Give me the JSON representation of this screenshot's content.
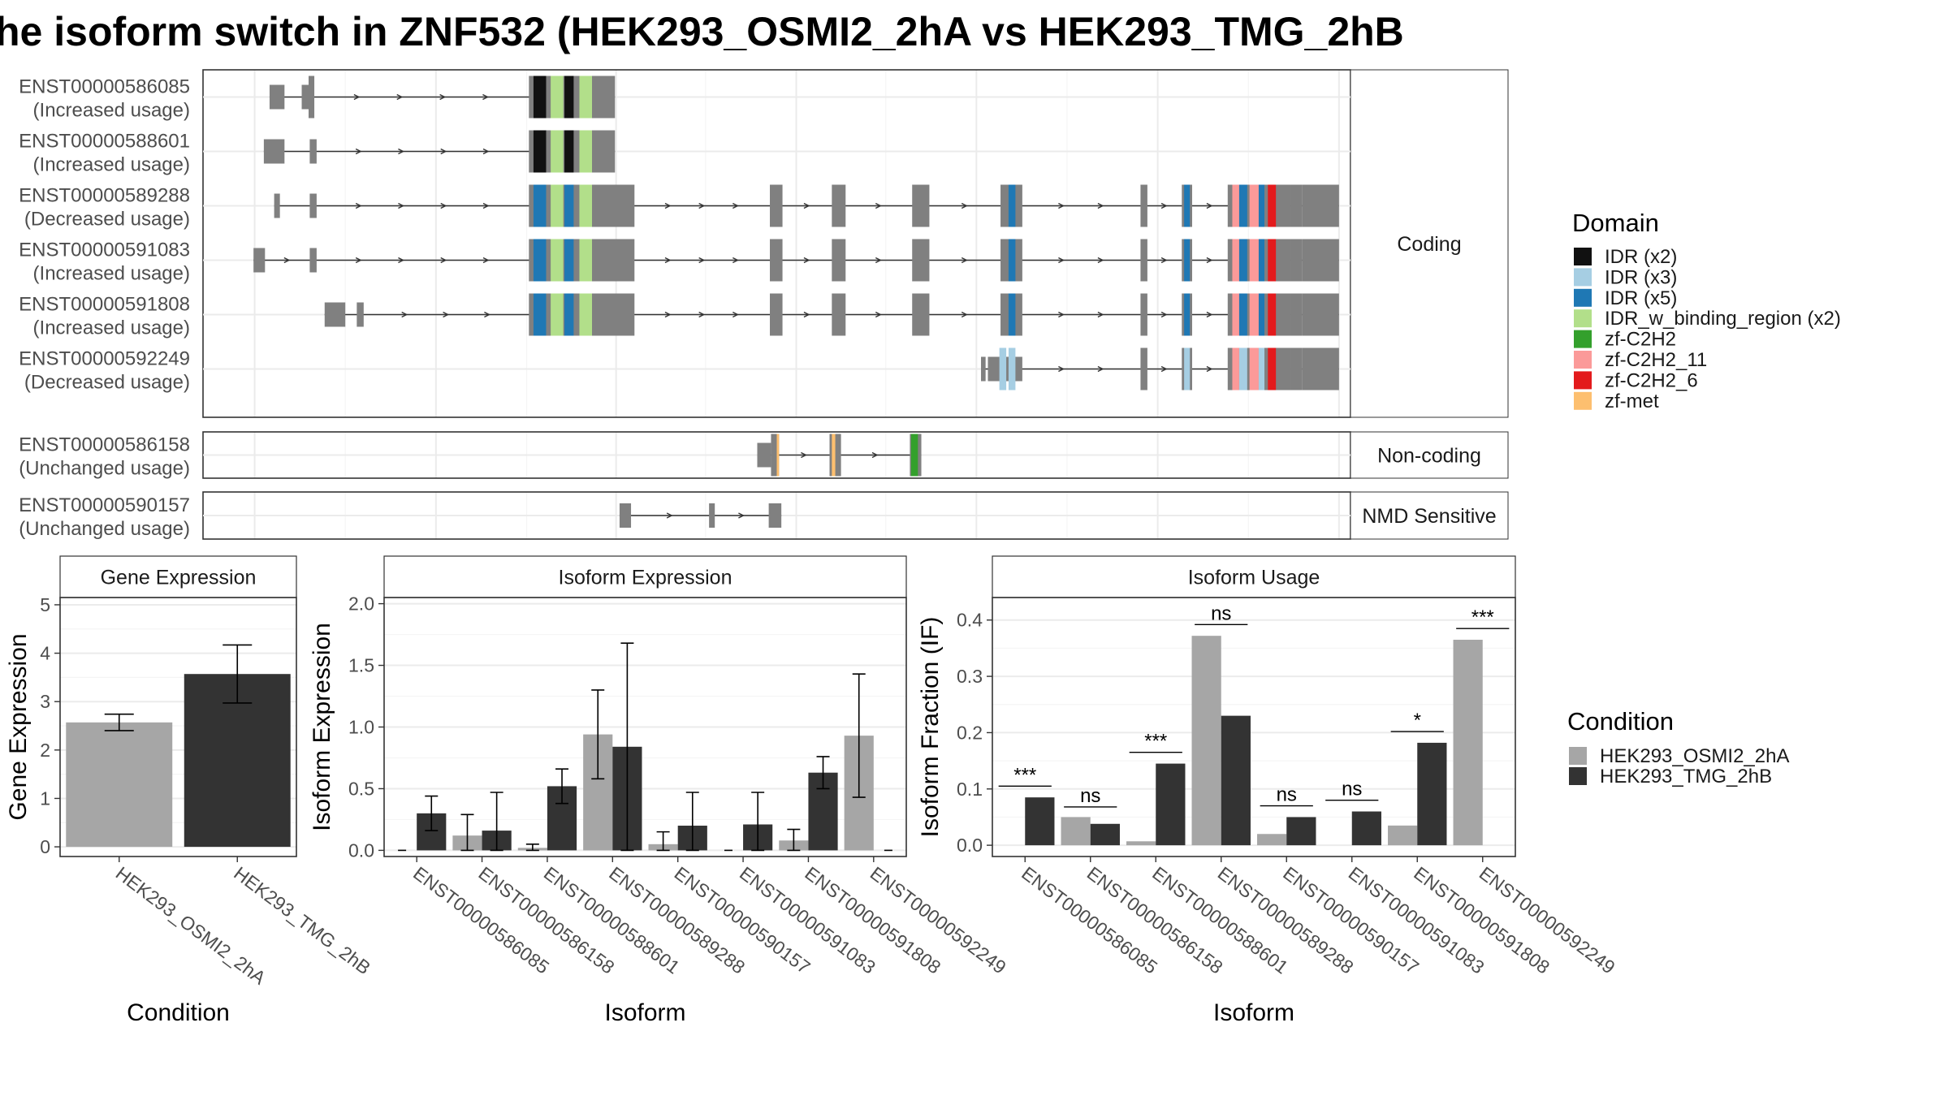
{
  "title": "he isoform switch in ZNF532 (HEK293_OSMI2_2hA vs HEK293_TMG_2hB",
  "colors": {
    "exon": "#808080",
    "line": "#333333",
    "cond_a": "#a6a6a6",
    "cond_b": "#333333",
    "grid": "#ebebeb",
    "strip_bg": "#ffffff",
    "panel_border": "#333333"
  },
  "structure": {
    "groups": [
      {
        "label": "Coding",
        "transcripts": [
          {
            "id": "ENST00000586085",
            "usage": "(Increased usage)",
            "exons": [
              [
                0.058,
                0.071
              ],
              [
                0.086,
                0.092
              ],
              [
                0.092,
                0.097
              ],
              [
                0.284,
                0.359
              ]
            ],
            "domains": [
              [
                0.288,
                0.299,
                "IDR (x2)"
              ],
              [
                0.303,
                0.314,
                "IDR_w_binding_region (x2)"
              ],
              [
                0.315,
                0.323,
                "IDR (x2)"
              ],
              [
                0.328,
                0.339,
                "IDR_w_binding_region (x2)"
              ]
            ]
          },
          {
            "id": "ENST00000588601",
            "usage": "(Increased usage)",
            "exons": [
              [
                0.053,
                0.071
              ],
              [
                0.093,
                0.099
              ],
              [
                0.284,
                0.359
              ]
            ],
            "domains": [
              [
                0.288,
                0.299,
                "IDR (x2)"
              ],
              [
                0.303,
                0.314,
                "IDR_w_binding_region (x2)"
              ],
              [
                0.315,
                0.323,
                "IDR (x2)"
              ],
              [
                0.328,
                0.339,
                "IDR_w_binding_region (x2)"
              ]
            ]
          },
          {
            "id": "ENST00000589288",
            "usage": "(Decreased usage)",
            "exons": [
              [
                0.062,
                0.067
              ],
              [
                0.093,
                0.099
              ],
              [
                0.284,
                0.376
              ],
              [
                0.494,
                0.505
              ],
              [
                0.548,
                0.56
              ],
              [
                0.618,
                0.633
              ],
              [
                0.695,
                0.714
              ],
              [
                0.817,
                0.823
              ],
              [
                0.853,
                0.862
              ],
              [
                0.893,
                0.948
              ],
              [
                0.948,
                0.958
              ],
              [
                0.958,
                0.99
              ]
            ],
            "domains": [
              [
                0.288,
                0.299,
                "IDR (x5)"
              ],
              [
                0.303,
                0.314,
                "IDR_w_binding_region (x2)"
              ],
              [
                0.315,
                0.323,
                "IDR (x5)"
              ],
              [
                0.328,
                0.339,
                "IDR_w_binding_region (x2)"
              ],
              [
                0.702,
                0.708,
                "IDR (x5)"
              ],
              [
                0.855,
                0.86,
                "IDR (x5)"
              ],
              [
                0.897,
                0.903,
                "zf-C2H2_11"
              ],
              [
                0.903,
                0.91,
                "IDR (x5)"
              ],
              [
                0.912,
                0.92,
                "zf-C2H2_11"
              ],
              [
                0.92,
                0.925,
                "IDR (x5)"
              ],
              [
                0.928,
                0.935,
                "zf-C2H2_6"
              ]
            ]
          },
          {
            "id": "ENST00000591083",
            "usage": "(Increased usage)",
            "exons": [
              [
                0.044,
                0.054
              ],
              [
                0.093,
                0.099
              ],
              [
                0.284,
                0.376
              ],
              [
                0.494,
                0.505
              ],
              [
                0.548,
                0.56
              ],
              [
                0.618,
                0.633
              ],
              [
                0.695,
                0.714
              ],
              [
                0.817,
                0.823
              ],
              [
                0.853,
                0.862
              ],
              [
                0.893,
                0.948
              ],
              [
                0.948,
                0.958
              ],
              [
                0.958,
                0.99
              ]
            ],
            "domains": [
              [
                0.288,
                0.299,
                "IDR (x5)"
              ],
              [
                0.303,
                0.314,
                "IDR_w_binding_region (x2)"
              ],
              [
                0.315,
                0.323,
                "IDR (x5)"
              ],
              [
                0.328,
                0.339,
                "IDR_w_binding_region (x2)"
              ],
              [
                0.702,
                0.708,
                "IDR (x5)"
              ],
              [
                0.855,
                0.86,
                "IDR (x5)"
              ],
              [
                0.897,
                0.903,
                "zf-C2H2_11"
              ],
              [
                0.903,
                0.91,
                "IDR (x5)"
              ],
              [
                0.912,
                0.92,
                "zf-C2H2_11"
              ],
              [
                0.92,
                0.925,
                "IDR (x5)"
              ],
              [
                0.928,
                0.935,
                "zf-C2H2_6"
              ]
            ]
          },
          {
            "id": "ENST00000591808",
            "usage": "(Increased usage)",
            "exons": [
              [
                0.106,
                0.124
              ],
              [
                0.134,
                0.14
              ],
              [
                0.284,
                0.376
              ],
              [
                0.494,
                0.505
              ],
              [
                0.548,
                0.56
              ],
              [
                0.618,
                0.633
              ],
              [
                0.695,
                0.714
              ],
              [
                0.817,
                0.823
              ],
              [
                0.853,
                0.862
              ],
              [
                0.893,
                0.948
              ],
              [
                0.948,
                0.958
              ],
              [
                0.958,
                0.99
              ]
            ],
            "domains": [
              [
                0.288,
                0.299,
                "IDR (x5)"
              ],
              [
                0.303,
                0.314,
                "IDR_w_binding_region (x2)"
              ],
              [
                0.315,
                0.323,
                "IDR (x5)"
              ],
              [
                0.328,
                0.339,
                "IDR_w_binding_region (x2)"
              ],
              [
                0.702,
                0.708,
                "IDR (x5)"
              ],
              [
                0.855,
                0.86,
                "IDR (x5)"
              ],
              [
                0.897,
                0.903,
                "zf-C2H2_11"
              ],
              [
                0.903,
                0.91,
                "IDR (x5)"
              ],
              [
                0.912,
                0.92,
                "zf-C2H2_11"
              ],
              [
                0.92,
                0.925,
                "IDR (x5)"
              ],
              [
                0.928,
                0.935,
                "zf-C2H2_6"
              ]
            ]
          },
          {
            "id": "ENST00000592249",
            "usage": "(Decreased usage)",
            "exons": [
              [
                0.678,
                0.682
              ],
              [
                0.684,
                0.714
              ],
              [
                0.817,
                0.823
              ],
              [
                0.853,
                0.862
              ],
              [
                0.893,
                0.948
              ],
              [
                0.948,
                0.958
              ],
              [
                0.958,
                0.99
              ]
            ],
            "domains": [
              [
                0.694,
                0.7,
                "IDR (x3)"
              ],
              [
                0.702,
                0.708,
                "IDR (x3)"
              ],
              [
                0.855,
                0.86,
                "IDR (x3)"
              ],
              [
                0.897,
                0.903,
                "zf-C2H2_11"
              ],
              [
                0.903,
                0.91,
                "IDR (x3)"
              ],
              [
                0.912,
                0.92,
                "zf-C2H2_11"
              ],
              [
                0.92,
                0.925,
                "IDR (x3)"
              ],
              [
                0.928,
                0.935,
                "zf-C2H2_6"
              ]
            ]
          }
        ]
      },
      {
        "label": "Non-coding",
        "transcripts": [
          {
            "id": "ENST00000586158",
            "usage": "(Unchanged usage)",
            "exons": [
              [
                0.483,
                0.495
              ],
              [
                0.495,
                0.502
              ],
              [
                0.546,
                0.556
              ],
              [
                0.616,
                0.626
              ]
            ],
            "domains": [
              [
                0.5,
                0.502,
                "zf-met"
              ],
              [
                0.548,
                0.551,
                "zf-met"
              ],
              [
                0.617,
                0.623,
                "zf-C2H2"
              ]
            ]
          }
        ]
      },
      {
        "label": "NMD Sensitive",
        "transcripts": [
          {
            "id": "ENST00000590157",
            "usage": "(Unchanged usage)",
            "exons": [
              [
                0.363,
                0.373
              ],
              [
                0.441,
                0.446
              ],
              [
                0.493,
                0.504
              ]
            ],
            "domains": []
          }
        ]
      }
    ],
    "legend_title": "Domain",
    "domain_legend": [
      {
        "label": "IDR (x2)",
        "color": "#111111"
      },
      {
        "label": "IDR (x3)",
        "color": "#a6cee3"
      },
      {
        "label": "IDR (x5)",
        "color": "#1f78b4"
      },
      {
        "label": "IDR_w_binding_region (x2)",
        "color": "#b2df8a"
      },
      {
        "label": "zf-C2H2",
        "color": "#33a02c"
      },
      {
        "label": "zf-C2H2_11",
        "color": "#fb9a99"
      },
      {
        "label": "zf-C2H2_6",
        "color": "#e31a1c"
      },
      {
        "label": "zf-met",
        "color": "#fdbf6f"
      }
    ]
  },
  "condition_legend": {
    "title": "Condition",
    "items": [
      {
        "label": "HEK293_OSMI2_2hA",
        "color": "#a6a6a6"
      },
      {
        "label": "HEK293_TMG_2hB",
        "color": "#333333"
      }
    ]
  },
  "chart_data": [
    {
      "type": "bar",
      "title": "Gene Expression",
      "xlabel": "Condition",
      "ylabel": "Gene Expression",
      "ylim": [
        -0.2,
        5.15
      ],
      "yticks": [
        0,
        1,
        2,
        3,
        4,
        5
      ],
      "categories": [
        "HEK293_OSMI2_2hA",
        "HEK293_TMG_2hB"
      ],
      "values": [
        2.57,
        3.57
      ],
      "error": [
        [
          2.4,
          2.74
        ],
        [
          2.97,
          4.17
        ]
      ]
    },
    {
      "type": "bar",
      "title": "Isoform Expression",
      "xlabel": "Isoform",
      "ylabel": "Isoform Expression",
      "ylim": [
        -0.05,
        2.05
      ],
      "yticks": [
        0.0,
        0.5,
        1.0,
        1.5,
        2.0
      ],
      "categories": [
        "ENST00000586085",
        "ENST00000586158",
        "ENST00000588601",
        "ENST00000589288",
        "ENST00000590157",
        "ENST00000591083",
        "ENST00000591808",
        "ENST00000592249"
      ],
      "series": [
        {
          "name": "HEK293_OSMI2_2hA",
          "values": [
            0.0,
            0.12,
            0.02,
            0.94,
            0.05,
            0.0,
            0.08,
            0.93
          ],
          "error": [
            [
              0.0,
              0.0
            ],
            [
              0.0,
              0.29
            ],
            [
              0.0,
              0.05
            ],
            [
              0.58,
              1.3
            ],
            [
              0.0,
              0.15
            ],
            [
              0.0,
              0.0
            ],
            [
              0.0,
              0.17
            ],
            [
              0.43,
              1.43
            ]
          ]
        },
        {
          "name": "HEK293_TMG_2hB",
          "values": [
            0.3,
            0.16,
            0.52,
            0.84,
            0.2,
            0.21,
            0.63,
            0.0
          ],
          "error": [
            [
              0.16,
              0.44
            ],
            [
              0.0,
              0.47
            ],
            [
              0.38,
              0.66
            ],
            [
              0.0,
              1.68
            ],
            [
              0.0,
              0.47
            ],
            [
              0.0,
              0.47
            ],
            [
              0.5,
              0.76
            ],
            [
              0.0,
              0.0
            ]
          ]
        }
      ]
    },
    {
      "type": "bar",
      "title": "Isoform Usage",
      "xlabel": "Isoform",
      "ylabel": "Isoform Fraction (IF)",
      "ylim": [
        -0.02,
        0.44
      ],
      "yticks": [
        0.0,
        0.1,
        0.2,
        0.3,
        0.4
      ],
      "categories": [
        "ENST00000586085",
        "ENST00000586158",
        "ENST00000588601",
        "ENST00000589288",
        "ENST00000590157",
        "ENST00000591083",
        "ENST00000591808",
        "ENST00000592249"
      ],
      "series": [
        {
          "name": "HEK293_OSMI2_2hA",
          "values": [
            0.0,
            0.05,
            0.007,
            0.372,
            0.02,
            0.0,
            0.035,
            0.365
          ]
        },
        {
          "name": "HEK293_TMG_2hB",
          "values": [
            0.085,
            0.038,
            0.145,
            0.23,
            0.05,
            0.06,
            0.182,
            0.0
          ]
        }
      ],
      "annotations": [
        {
          "index": 0,
          "label": "***",
          "y": 0.105
        },
        {
          "index": 1,
          "label": "ns",
          "y": 0.068
        },
        {
          "index": 2,
          "label": "***",
          "y": 0.165
        },
        {
          "index": 3,
          "label": "ns",
          "y": 0.392
        },
        {
          "index": 4,
          "label": "ns",
          "y": 0.07
        },
        {
          "index": 5,
          "label": "ns",
          "y": 0.08
        },
        {
          "index": 6,
          "label": "*",
          "y": 0.202
        },
        {
          "index": 7,
          "label": "***",
          "y": 0.385
        }
      ]
    }
  ]
}
